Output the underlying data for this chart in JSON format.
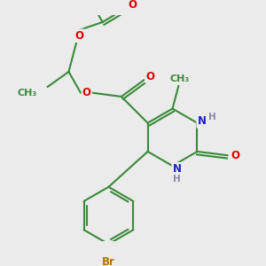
{
  "bg_color": "#ebebeb",
  "bond_color": "#3a8a3a",
  "bond_width": 1.5,
  "atom_colors": {
    "O": "#e00000",
    "N": "#2020cc",
    "Br": "#b87000",
    "C": "#3a8a3a",
    "H": "#8888aa"
  },
  "font_size": 8.5,
  "figsize": [
    3.0,
    3.0
  ],
  "dpi": 100,
  "bg_hex": "#ebebeb"
}
